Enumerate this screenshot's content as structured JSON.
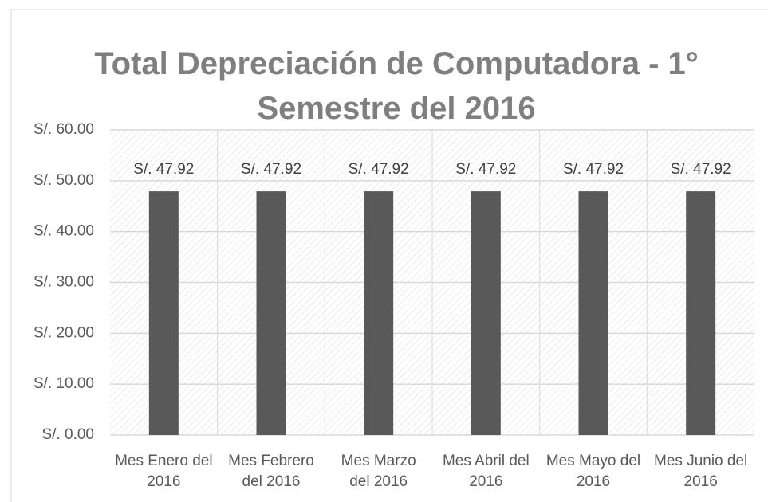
{
  "chart_data": {
    "type": "bar",
    "title": "Total Depreciación de Computadora - 1° Semestre del 2016",
    "categories": [
      "Mes Enero del 2016",
      "Mes Febrero del 2016",
      "Mes Marzo del 2016",
      "Mes Abril del 2016",
      "Mes Mayo del 2016",
      "Mes Junio del 2016"
    ],
    "values": [
      47.92,
      47.92,
      47.92,
      47.92,
      47.92,
      47.92
    ],
    "value_labels": [
      "S/. 47.92",
      "S/. 47.92",
      "S/. 47.92",
      "S/. 47.92",
      "S/. 47.92",
      "S/. 47.92"
    ],
    "color": "#595959",
    "ylim": [
      0,
      60
    ],
    "yticks": [
      {
        "value": 0,
        "label": "S/. 0.00"
      },
      {
        "value": 10,
        "label": "S/. 10.00"
      },
      {
        "value": 20,
        "label": "S/. 20.00"
      },
      {
        "value": 30,
        "label": "S/. 30.00"
      },
      {
        "value": 40,
        "label": "S/. 40.00"
      },
      {
        "value": 50,
        "label": "S/. 50.00"
      },
      {
        "value": 60,
        "label": "S/. 60.00"
      }
    ],
    "grid": true
  }
}
